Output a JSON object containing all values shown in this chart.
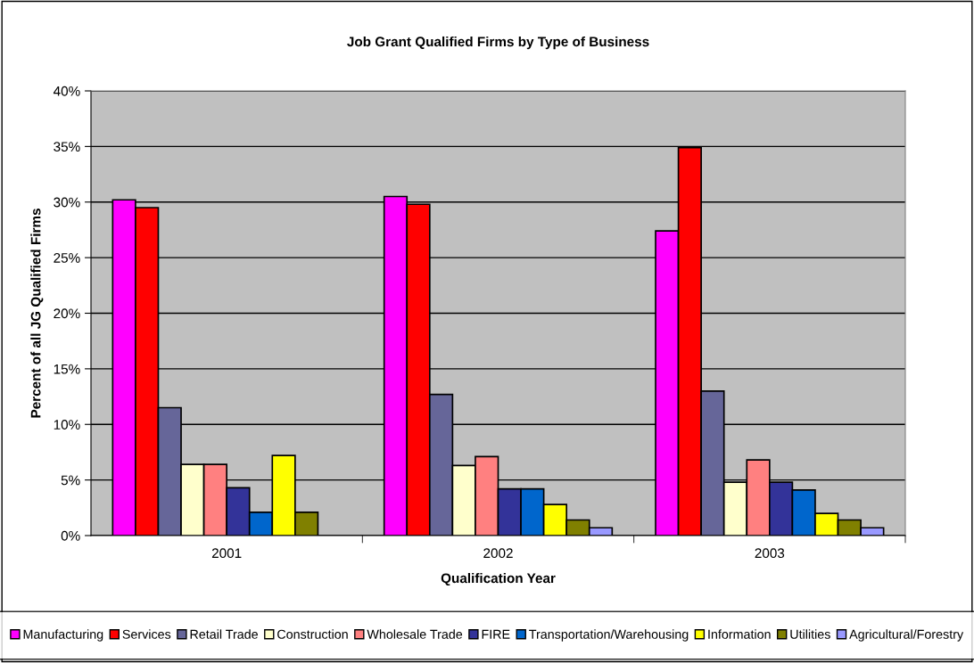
{
  "chart_data": {
    "type": "bar",
    "title": "Job Grant Qualified Firms by Type of Business",
    "xlabel": "Qualification Year",
    "ylabel": "Percent of all JG Qualified Firms",
    "categories": [
      "2001",
      "2002",
      "2003"
    ],
    "series": [
      {
        "name": "Manufacturing",
        "color": "#ff00ff",
        "values": [
          30.2,
          30.5,
          27.4
        ]
      },
      {
        "name": "Services",
        "color": "#ff0000",
        "values": [
          29.5,
          29.8,
          34.9
        ]
      },
      {
        "name": "Retail Trade",
        "color": "#666699",
        "values": [
          11.5,
          12.7,
          13.0
        ]
      },
      {
        "name": "Construction",
        "color": "#ffffcc",
        "values": [
          6.4,
          6.3,
          4.8
        ]
      },
      {
        "name": "Wholesale Trade",
        "color": "#ff8080",
        "values": [
          6.4,
          7.1,
          6.8
        ]
      },
      {
        "name": "FIRE",
        "color": "#333399",
        "values": [
          4.3,
          4.2,
          4.8
        ]
      },
      {
        "name": "Transportation/Warehousing",
        "color": "#0066cc",
        "values": [
          2.1,
          4.2,
          4.1
        ]
      },
      {
        "name": "Information",
        "color": "#ffff00",
        "values": [
          7.2,
          2.8,
          2.0
        ]
      },
      {
        "name": "Utilities",
        "color": "#808000",
        "values": [
          2.1,
          1.4,
          1.4
        ]
      },
      {
        "name": "Agricultural/Forestry",
        "color": "#9999ff",
        "values": [
          null,
          0.7,
          0.7
        ]
      }
    ],
    "ylim": [
      0,
      40
    ],
    "yticks": [
      {
        "value": 0,
        "label": "0%"
      },
      {
        "value": 5,
        "label": "5%"
      },
      {
        "value": 10,
        "label": "10%"
      },
      {
        "value": 15,
        "label": "15%"
      },
      {
        "value": 20,
        "label": "20%"
      },
      {
        "value": 25,
        "label": "25%"
      },
      {
        "value": 30,
        "label": "30%"
      },
      {
        "value": 35,
        "label": "35%"
      },
      {
        "value": 40,
        "label": "40%"
      }
    ],
    "grid": "y",
    "legend": "bottom"
  }
}
